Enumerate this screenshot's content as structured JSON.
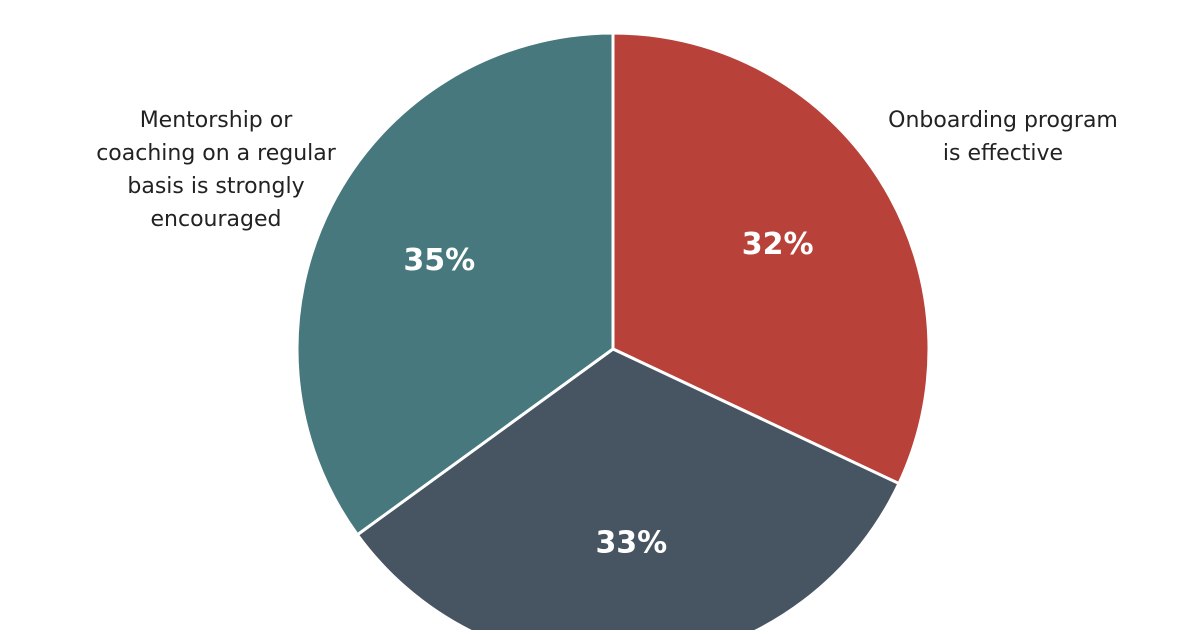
{
  "chart_data": {
    "type": "pie",
    "slices": [
      {
        "label": "Onboarding program\nis effective",
        "value": 32,
        "display": "32%",
        "color": "#b8423a"
      },
      {
        "label": "",
        "value": 33,
        "display": "33%",
        "color": "#475563"
      },
      {
        "label": "Mentorship or\ncoaching on a regular\nbasis is strongly\nencouraged",
        "value": 35,
        "display": "35%",
        "color": "#46787d"
      }
    ],
    "start_angle_deg": 0,
    "direction": "clockwise",
    "slice_label_color": "#ffffff",
    "separator_color": "#ffffff",
    "legend": "none"
  }
}
